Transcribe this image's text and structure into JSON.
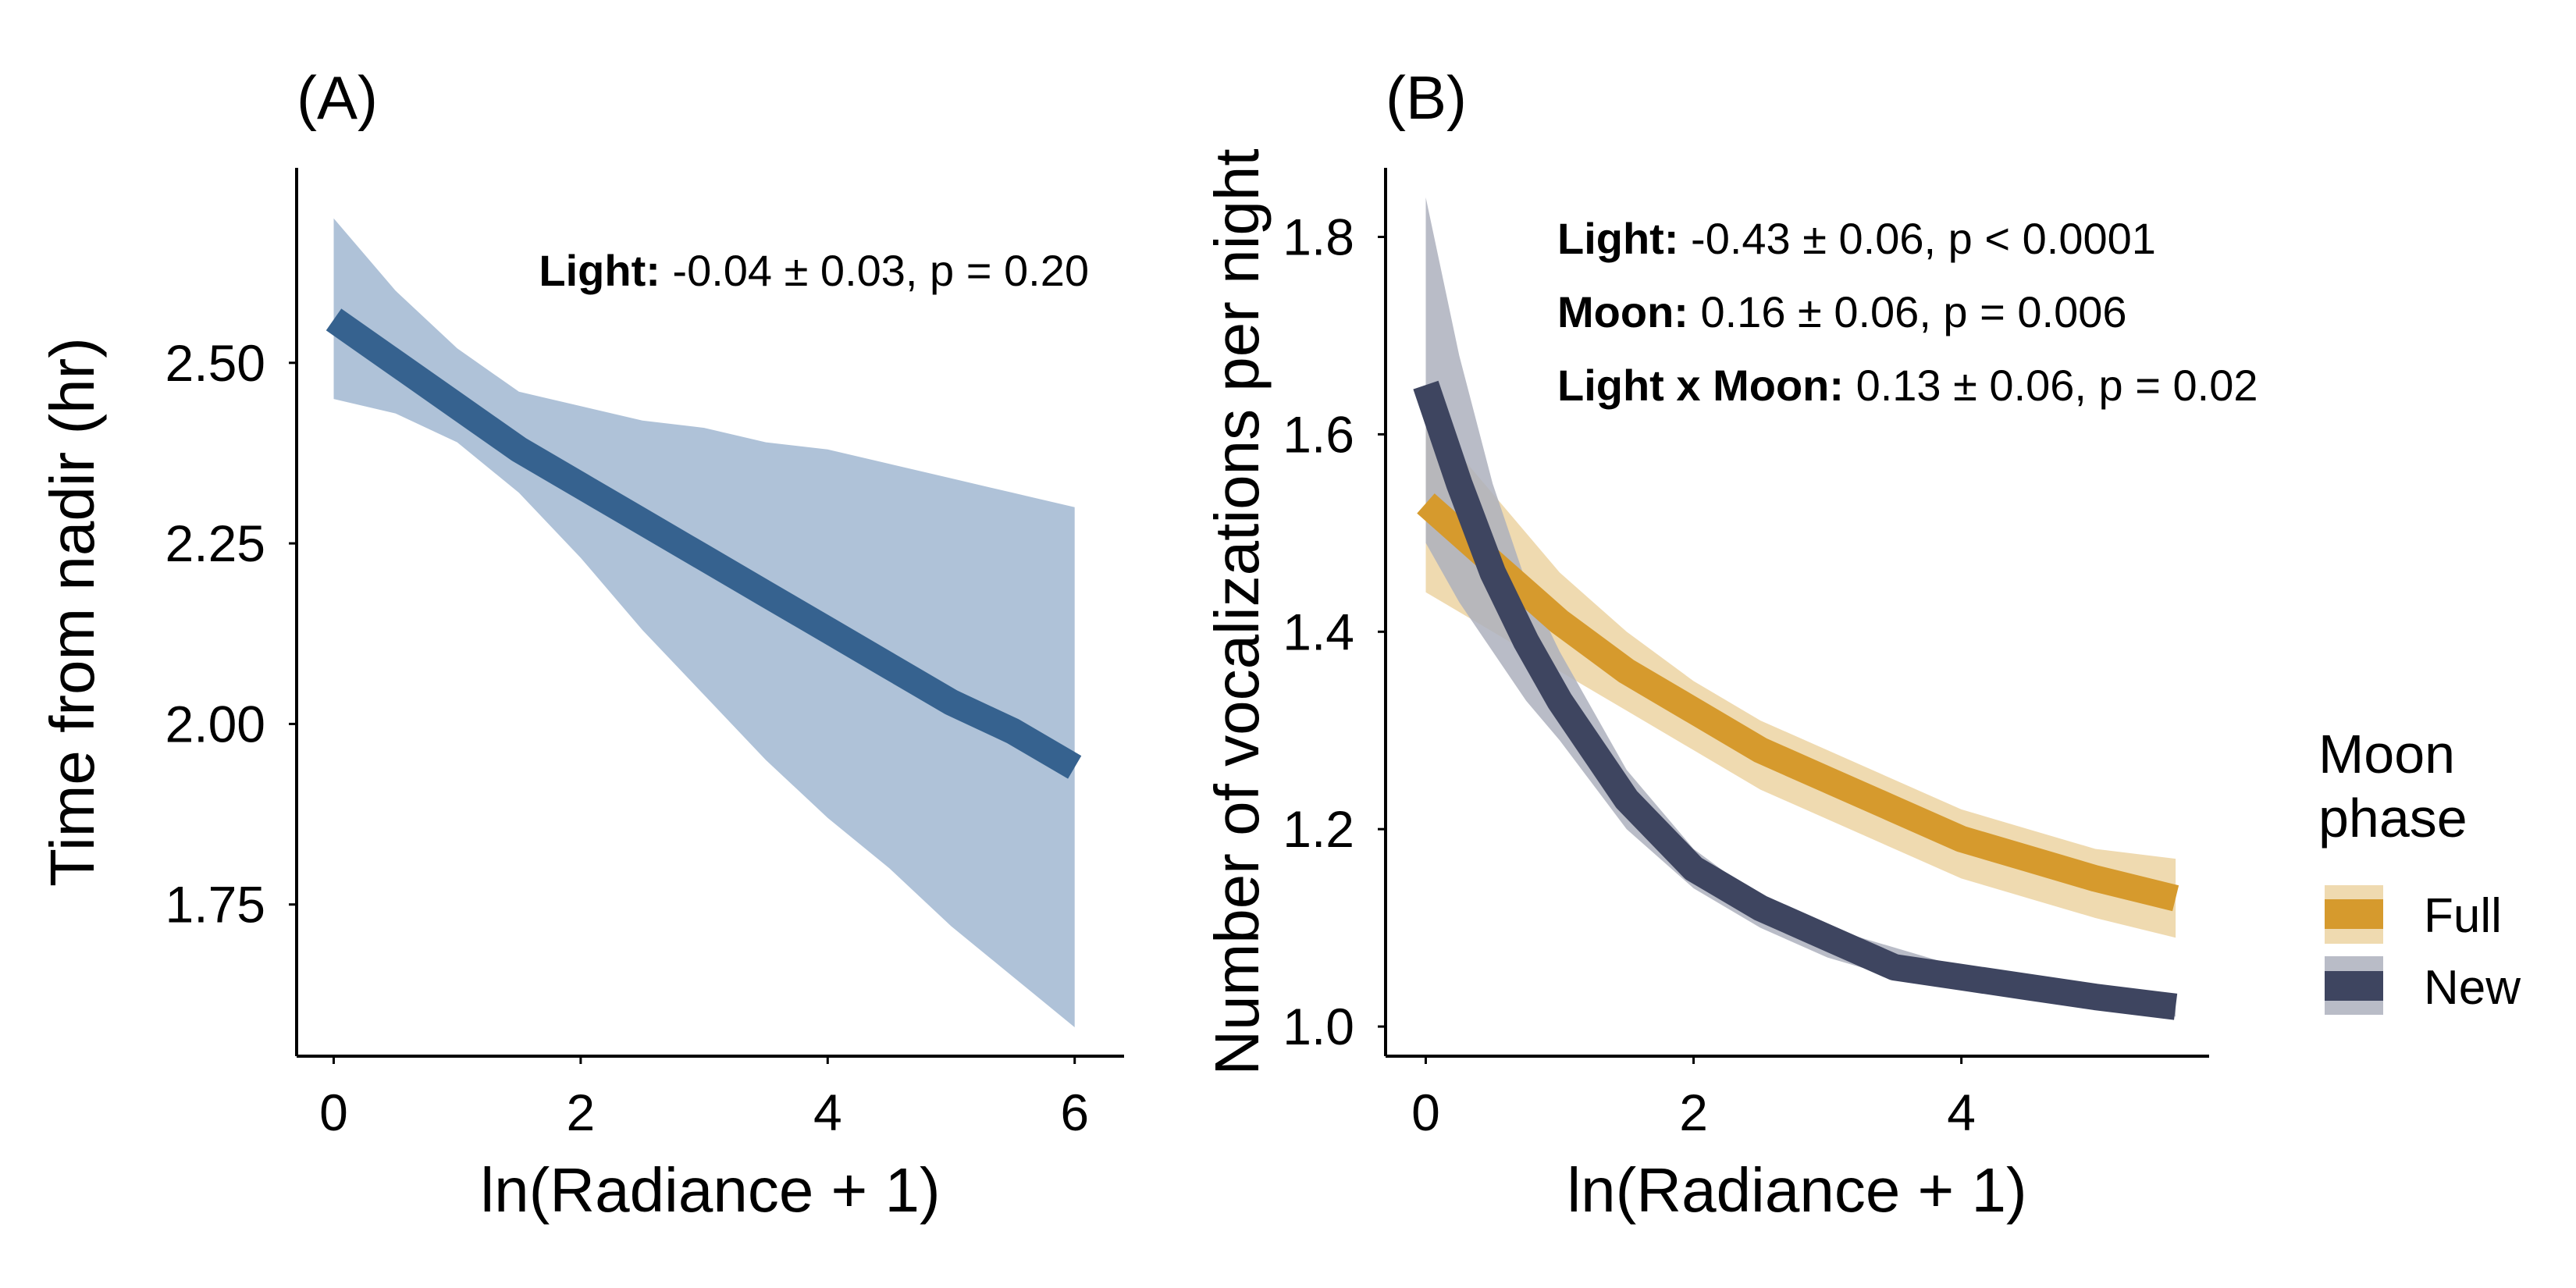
{
  "chart_data": [
    {
      "panel": "(A)",
      "type": "line",
      "xlabel": "ln(Radiance + 1)",
      "ylabel": "Time from nadir (hr)",
      "xlim": [
        -0.3,
        6.4
      ],
      "ylim": [
        1.54,
        2.77
      ],
      "xticks": [
        0,
        2,
        4,
        6
      ],
      "yticks": [
        "1.75",
        "2.00",
        "2.25",
        "2.50"
      ],
      "grid": false,
      "annotations": [
        {
          "bold": "Light:",
          "text": " -0.04 ± 0.03, p = 0.20"
        }
      ],
      "series": [
        {
          "color": "#36628f",
          "band_color": "#afc2d8",
          "x": [
            0.0,
            0.5,
            1.0,
            1.5,
            2.0,
            2.5,
            3.0,
            3.5,
            4.0,
            4.5,
            5.0,
            5.5,
            6.0
          ],
          "y": [
            2.56,
            2.5,
            2.44,
            2.38,
            2.33,
            2.28,
            2.23,
            2.18,
            2.13,
            2.08,
            2.03,
            1.99,
            1.94
          ],
          "lower": [
            2.45,
            2.43,
            2.39,
            2.32,
            2.23,
            2.13,
            2.04,
            1.95,
            1.87,
            1.8,
            1.72,
            1.65,
            1.58
          ],
          "upper": [
            2.7,
            2.6,
            2.52,
            2.46,
            2.44,
            2.42,
            2.41,
            2.39,
            2.38,
            2.36,
            2.34,
            2.32,
            2.3
          ]
        }
      ]
    },
    {
      "panel": "(B)",
      "type": "line",
      "xlabel": "ln(Radiance + 1)",
      "ylabel": "Number of vocalizations per night",
      "xlim": [
        -0.3,
        5.85
      ],
      "ylim": [
        0.97,
        1.87
      ],
      "xticks": [
        0,
        2,
        4
      ],
      "yticks": [
        "1.0",
        "1.2",
        "1.4",
        "1.6",
        "1.8"
      ],
      "grid": false,
      "annotations": [
        {
          "bold": "Light:",
          "text": " -0.43 ± 0.06, p < 0.0001"
        },
        {
          "bold": "Moon:",
          "text": " 0.16 ± 0.06, p = 0.006"
        },
        {
          "bold": "Light x Moon:",
          "text": " 0.13 ± 0.06, p = 0.02"
        }
      ],
      "legend": {
        "title_lines": [
          "Moon",
          "phase"
        ],
        "placement": "right"
      },
      "series": [
        {
          "name": "Full",
          "color": "#d69a2d",
          "band_color": "#ecd3a2",
          "x": [
            0.0,
            0.5,
            1.0,
            1.5,
            2.0,
            2.5,
            3.0,
            3.5,
            4.0,
            4.5,
            5.0,
            5.6
          ],
          "y": [
            1.53,
            1.47,
            1.41,
            1.36,
            1.32,
            1.28,
            1.25,
            1.22,
            1.19,
            1.17,
            1.15,
            1.13
          ],
          "lower": [
            1.44,
            1.4,
            1.36,
            1.32,
            1.28,
            1.24,
            1.21,
            1.18,
            1.15,
            1.13,
            1.11,
            1.09
          ],
          "upper": [
            1.62,
            1.54,
            1.46,
            1.4,
            1.35,
            1.31,
            1.28,
            1.25,
            1.22,
            1.2,
            1.18,
            1.17
          ]
        },
        {
          "name": "New",
          "color": "#3e4560",
          "band_color": "#adb0bd",
          "x": [
            0.0,
            0.25,
            0.5,
            0.75,
            1.0,
            1.5,
            2.0,
            2.5,
            3.0,
            3.5,
            4.0,
            4.5,
            5.0,
            5.6
          ],
          "y": [
            1.65,
            1.55,
            1.46,
            1.39,
            1.33,
            1.23,
            1.16,
            1.12,
            1.09,
            1.06,
            1.05,
            1.04,
            1.03,
            1.02
          ],
          "lower": [
            1.49,
            1.43,
            1.38,
            1.33,
            1.29,
            1.2,
            1.14,
            1.1,
            1.07,
            1.05,
            1.04,
            1.03,
            1.02,
            1.01
          ],
          "upper": [
            1.84,
            1.68,
            1.55,
            1.45,
            1.38,
            1.26,
            1.18,
            1.13,
            1.1,
            1.08,
            1.06,
            1.05,
            1.04,
            1.03
          ]
        }
      ]
    }
  ]
}
